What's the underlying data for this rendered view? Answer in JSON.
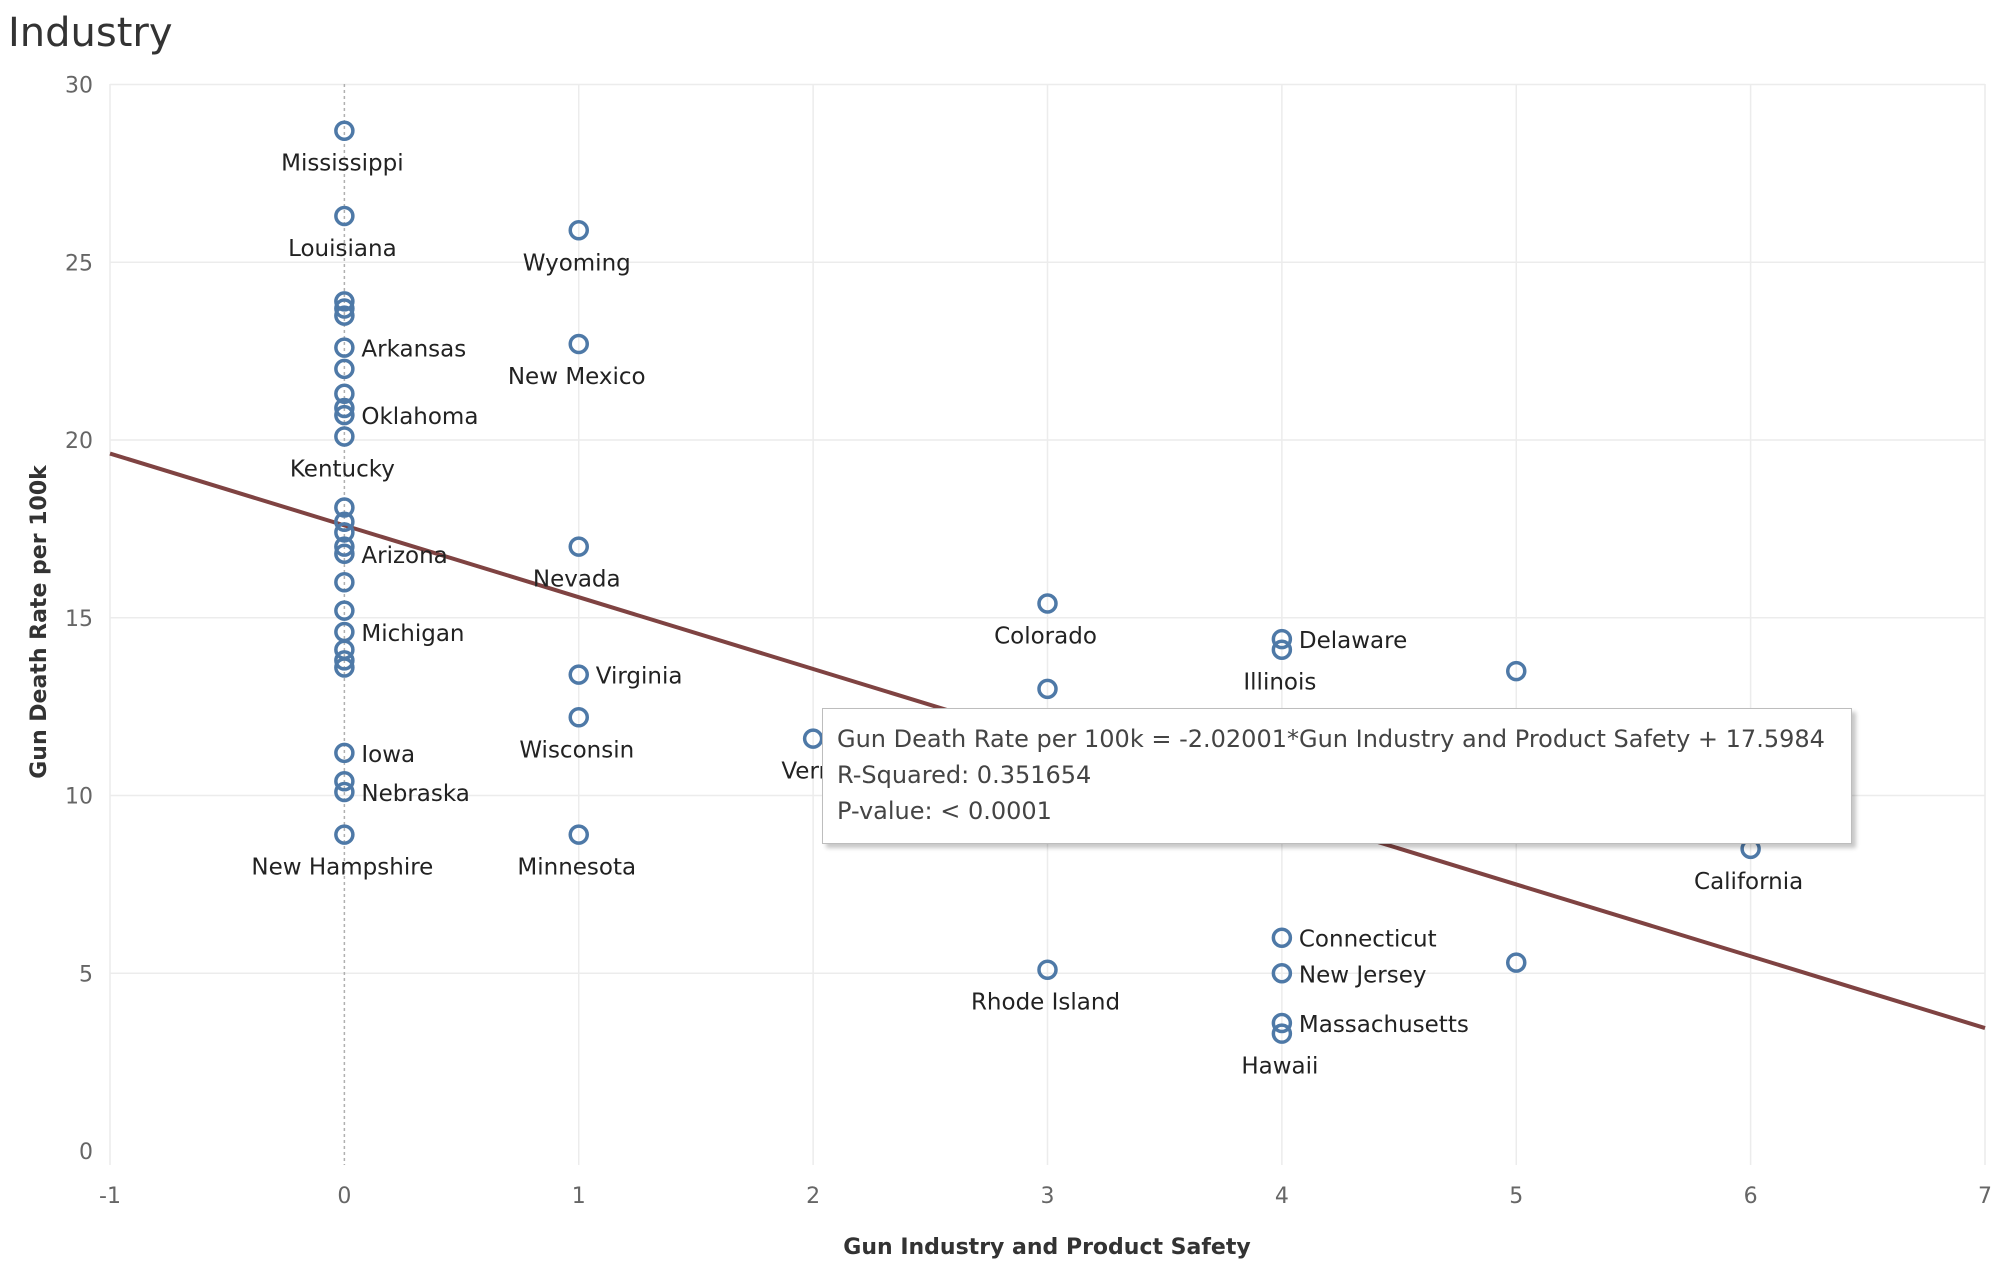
{
  "page": {
    "title": "Industry"
  },
  "tooltip": {
    "equation": "Gun Death Rate per 100k = -2.02001*Gun Industry and Product Safety + 17.5984",
    "r_squared": "R-Squared: 0.351654",
    "p_value": "P-value: < 0.0001"
  },
  "colors": {
    "point": "#4e79a7",
    "trend": "#7f4342",
    "grid": "#ececec",
    "zero_line": "#b0b0b0"
  },
  "chart_data": {
    "type": "scatter",
    "xlabel": "Gun Industry and Product Safety",
    "ylabel": "Gun Death Rate per 100k",
    "xlim": [
      -1,
      7
    ],
    "ylim": [
      0,
      30
    ],
    "x_ticks": [
      -1,
      0,
      1,
      2,
      3,
      4,
      5,
      6,
      7
    ],
    "y_ticks": [
      0,
      5,
      10,
      15,
      20,
      25,
      30
    ],
    "grid": true,
    "trend_line": {
      "slope": -2.02001,
      "intercept": 17.5984
    },
    "points": [
      {
        "x": 0,
        "y": 28.7,
        "label": "Mississippi",
        "label_pos": "below"
      },
      {
        "x": 0,
        "y": 26.3,
        "label": "Louisiana",
        "label_pos": "below"
      },
      {
        "x": 0,
        "y": 23.9,
        "label": ""
      },
      {
        "x": 0,
        "y": 23.7,
        "label": ""
      },
      {
        "x": 0,
        "y": 23.5,
        "label": ""
      },
      {
        "x": 0,
        "y": 22.6,
        "label": "Arkansas",
        "label_pos": "right"
      },
      {
        "x": 0,
        "y": 22.0,
        "label": ""
      },
      {
        "x": 0,
        "y": 21.3,
        "label": ""
      },
      {
        "x": 0,
        "y": 20.9,
        "label": ""
      },
      {
        "x": 0,
        "y": 20.7,
        "label": "Oklahoma",
        "label_pos": "right"
      },
      {
        "x": 0,
        "y": 20.1,
        "label": "Kentucky",
        "label_pos": "below"
      },
      {
        "x": 0,
        "y": 18.1,
        "label": ""
      },
      {
        "x": 0,
        "y": 17.7,
        "label": ""
      },
      {
        "x": 0,
        "y": 17.4,
        "label": ""
      },
      {
        "x": 0,
        "y": 17.0,
        "label": ""
      },
      {
        "x": 0,
        "y": 16.8,
        "label": "Arizona",
        "label_pos": "right"
      },
      {
        "x": 0,
        "y": 16.0,
        "label": ""
      },
      {
        "x": 0,
        "y": 15.2,
        "label": ""
      },
      {
        "x": 0,
        "y": 14.6,
        "label": "Michigan",
        "label_pos": "right"
      },
      {
        "x": 0,
        "y": 14.1,
        "label": ""
      },
      {
        "x": 0,
        "y": 13.8,
        "label": ""
      },
      {
        "x": 0,
        "y": 13.6,
        "label": ""
      },
      {
        "x": 0,
        "y": 11.2,
        "label": "Iowa",
        "label_pos": "right"
      },
      {
        "x": 0,
        "y": 10.4,
        "label": ""
      },
      {
        "x": 0,
        "y": 10.1,
        "label": "Nebraska",
        "label_pos": "right"
      },
      {
        "x": 0,
        "y": 8.9,
        "label": "New Hampshire",
        "label_pos": "below"
      },
      {
        "x": 1,
        "y": 25.9,
        "label": "Wyoming",
        "label_pos": "below"
      },
      {
        "x": 1,
        "y": 22.7,
        "label": "New Mexico",
        "label_pos": "below"
      },
      {
        "x": 1,
        "y": 17.0,
        "label": "Nevada",
        "label_pos": "below"
      },
      {
        "x": 1,
        "y": 13.4,
        "label": "Virginia",
        "label_pos": "right"
      },
      {
        "x": 1,
        "y": 12.2,
        "label": "Wisconsin",
        "label_pos": "below"
      },
      {
        "x": 1,
        "y": 8.9,
        "label": "Minnesota",
        "label_pos": "below"
      },
      {
        "x": 2,
        "y": 11.6,
        "label": "Verm",
        "label_pos": "below"
      },
      {
        "x": 3,
        "y": 15.4,
        "label": "Colorado",
        "label_pos": "below"
      },
      {
        "x": 3,
        "y": 13.0,
        "label": ""
      },
      {
        "x": 3,
        "y": 5.1,
        "label": "Rhode Island",
        "label_pos": "below"
      },
      {
        "x": 4,
        "y": 14.4,
        "label": "Delaware",
        "label_pos": "right"
      },
      {
        "x": 4,
        "y": 14.1,
        "label": "Illinois",
        "label_pos": "below"
      },
      {
        "x": 4,
        "y": 6.0,
        "label": "Connecticut",
        "label_pos": "right"
      },
      {
        "x": 4,
        "y": 5.0,
        "label": "New Jersey",
        "label_pos": "right"
      },
      {
        "x": 4,
        "y": 3.6,
        "label": "Massachusetts",
        "label_pos": "right"
      },
      {
        "x": 4,
        "y": 3.3,
        "label": "Hawaii",
        "label_pos": "below"
      },
      {
        "x": 5,
        "y": 13.5,
        "label": ""
      },
      {
        "x": 5,
        "y": 5.3,
        "label": ""
      },
      {
        "x": 6,
        "y": 8.5,
        "label": "California",
        "label_pos": "below"
      }
    ]
  }
}
